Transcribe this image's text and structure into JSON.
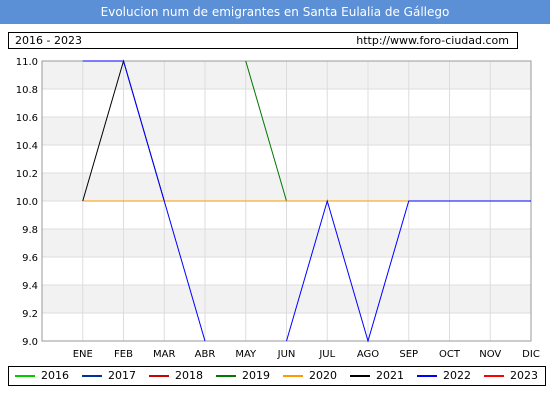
{
  "header": {
    "title": "Evolucion num de emigrantes en Santa Eulalia de Gállego"
  },
  "info": {
    "range": "2016 - 2023",
    "url": "http://www.foro-ciudad.com"
  },
  "chart_data": {
    "type": "line",
    "title": "Evolucion num de emigrantes en Santa Eulalia de Gállego",
    "xlabel": "",
    "ylabel": "",
    "categories": [
      "ENE",
      "FEB",
      "MAR",
      "ABR",
      "MAY",
      "JUN",
      "JUL",
      "AGO",
      "SEP",
      "OCT",
      "NOV",
      "DIC"
    ],
    "y_ticks": [
      "9.0",
      "9.2",
      "9.4",
      "9.6",
      "9.8",
      "10.0",
      "10.2",
      "10.4",
      "10.6",
      "10.8",
      "11.0"
    ],
    "ylim": [
      9.0,
      11.0
    ],
    "grid": true,
    "legend_position": "bottom",
    "series": [
      {
        "name": "2016",
        "color": "#00cc00",
        "values": [
          null,
          null,
          null,
          null,
          null,
          null,
          null,
          null,
          null,
          null,
          null,
          null
        ]
      },
      {
        "name": "2017",
        "color": "#003399",
        "values": [
          null,
          null,
          null,
          null,
          null,
          null,
          null,
          null,
          null,
          null,
          null,
          null
        ]
      },
      {
        "name": "2018",
        "color": "#cc0000",
        "values": [
          10,
          null,
          null,
          null,
          null,
          null,
          null,
          null,
          null,
          null,
          null,
          null
        ]
      },
      {
        "name": "2019",
        "color": "#007700",
        "values": [
          null,
          null,
          null,
          null,
          11,
          10,
          null,
          null,
          null,
          null,
          null,
          null
        ]
      },
      {
        "name": "2020",
        "color": "#ff9900",
        "values": [
          10,
          10,
          10,
          10,
          10,
          10,
          10,
          10,
          10,
          null,
          null,
          null
        ]
      },
      {
        "name": "2021",
        "color": "#000000",
        "values": [
          10,
          11,
          10,
          null,
          null,
          null,
          null,
          null,
          null,
          null,
          null,
          null
        ]
      },
      {
        "name": "2022",
        "color": "#0000ff",
        "values": [
          11,
          11,
          10,
          9,
          null,
          9,
          10,
          9,
          10,
          10,
          10,
          10
        ]
      },
      {
        "name": "2023",
        "color": "#ff0000",
        "values": [
          10,
          null,
          null,
          null,
          null,
          null,
          null,
          null,
          null,
          null,
          null,
          null
        ]
      }
    ]
  }
}
